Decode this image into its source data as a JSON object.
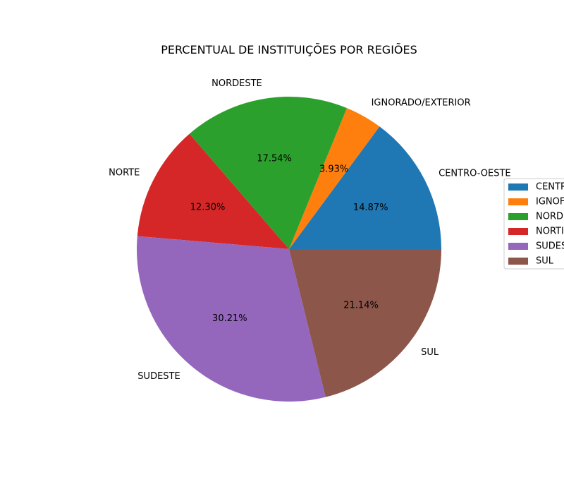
{
  "chart_data": {
    "type": "pie",
    "title": "PERCENTUAL DE INSTITUIÇÕES POR REGIÕES",
    "slices": [
      {
        "label": "CENTRO-OESTE",
        "legend_text": "CENTR",
        "value": 14.87,
        "pct_label": "14.87%",
        "color": "#1f77b4"
      },
      {
        "label": "IGNORADO/EXTERIOR",
        "legend_text": "IGNOF",
        "value": 3.93,
        "pct_label": "3.93%",
        "color": "#ff7f0e"
      },
      {
        "label": "NORDESTE",
        "legend_text": "NORD",
        "value": 17.54,
        "pct_label": "17.54%",
        "color": "#2ca02c"
      },
      {
        "label": "NORTE",
        "legend_text": "NORTI",
        "value": 12.3,
        "pct_label": "12.30%",
        "color": "#d62728"
      },
      {
        "label": "SUDESTE",
        "legend_text": "SUDES",
        "value": 30.21,
        "pct_label": "30.21%",
        "color": "#9467bd"
      },
      {
        "label": "SUL",
        "legend_text": "SUL",
        "value": 21.14,
        "pct_label": "21.14%",
        "color": "#8c564b"
      }
    ],
    "start_angle": 0,
    "direction": "counterclockwise",
    "legend_position": "right, clipped at page edge"
  }
}
